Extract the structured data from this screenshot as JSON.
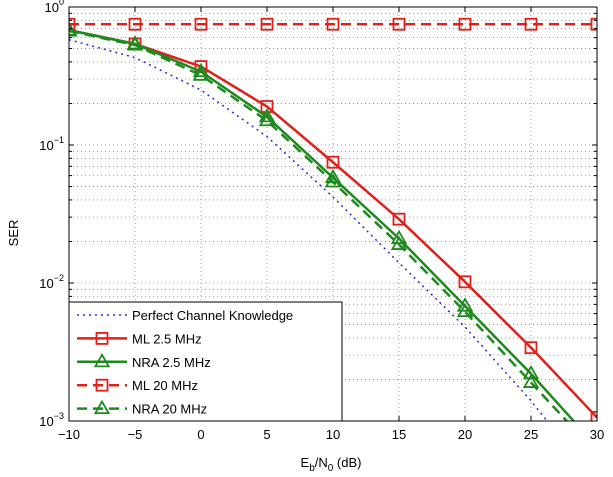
{
  "chart_data": {
    "type": "line",
    "title": "",
    "xlabel": "E_b/N_0 (dB)",
    "xlabel_parts": {
      "main": "E",
      "sub1": "b",
      "mid": "/N",
      "sub2": "0",
      "tail": " (dB)"
    },
    "ylabel": "SER",
    "xlim": [
      -10,
      30
    ],
    "ylim": [
      0.001,
      1
    ],
    "yscale": "log",
    "grid": true,
    "legend_position": "bottom-left",
    "x_ticks": [
      -10,
      -5,
      0,
      5,
      10,
      15,
      20,
      25,
      30
    ],
    "x_tick_labels": [
      "−10",
      "−5",
      "0",
      "5",
      "10",
      "15",
      "20",
      "25",
      "30"
    ],
    "y_ticks": [
      {
        "value": 1,
        "base": "10",
        "exp": "0"
      },
      {
        "value": 0.1,
        "base": "10",
        "exp": "−1"
      },
      {
        "value": 0.01,
        "base": "10",
        "exp": "−2"
      },
      {
        "value": 0.001,
        "base": "10",
        "exp": "−3"
      }
    ],
    "series": [
      {
        "name": "Perfect Channel Knowledge",
        "color": "#2a2ad8",
        "dash": "2,4",
        "marker": "none",
        "width": 1.5,
        "x": [
          -10,
          -5,
          0,
          5,
          10,
          15,
          20,
          25,
          30
        ],
        "y": [
          0.58,
          0.43,
          0.25,
          0.115,
          0.042,
          0.014,
          0.0048,
          0.0014,
          0.00035
        ]
      },
      {
        "name": "ML 2.5 MHz",
        "color": "#e0201b",
        "dash": "",
        "marker": "square",
        "width": 2.5,
        "x": [
          -10,
          -5,
          0,
          5,
          10,
          15,
          20,
          25,
          30
        ],
        "y": [
          0.68,
          0.54,
          0.37,
          0.19,
          0.075,
          0.029,
          0.0102,
          0.0034,
          0.00106
        ]
      },
      {
        "name": "NRA 2.5 MHz",
        "color": "#1e8a1e",
        "dash": "",
        "marker": "triangle",
        "width": 2.5,
        "x": [
          -10,
          -5,
          0,
          5,
          10,
          15,
          20,
          25,
          30
        ],
        "y": [
          0.68,
          0.54,
          0.34,
          0.16,
          0.058,
          0.021,
          0.0068,
          0.0022,
          0.00065
        ]
      },
      {
        "name": "ML 20 MHz",
        "color": "#e0201b",
        "dash": "10,6",
        "marker": "square",
        "width": 2.5,
        "x": [
          -10,
          -5,
          0,
          5,
          10,
          15,
          20,
          25,
          30
        ],
        "y": [
          0.75,
          0.75,
          0.75,
          0.75,
          0.75,
          0.75,
          0.75,
          0.75,
          0.75
        ]
      },
      {
        "name": "NRA 20 MHz",
        "color": "#1e8a1e",
        "dash": "10,6",
        "marker": "triangle",
        "width": 2.5,
        "x": [
          -10,
          -5,
          0,
          5,
          10,
          15,
          20,
          25,
          30
        ],
        "y": [
          0.67,
          0.53,
          0.32,
          0.15,
          0.054,
          0.019,
          0.0062,
          0.0019,
          0.00058
        ]
      }
    ]
  }
}
